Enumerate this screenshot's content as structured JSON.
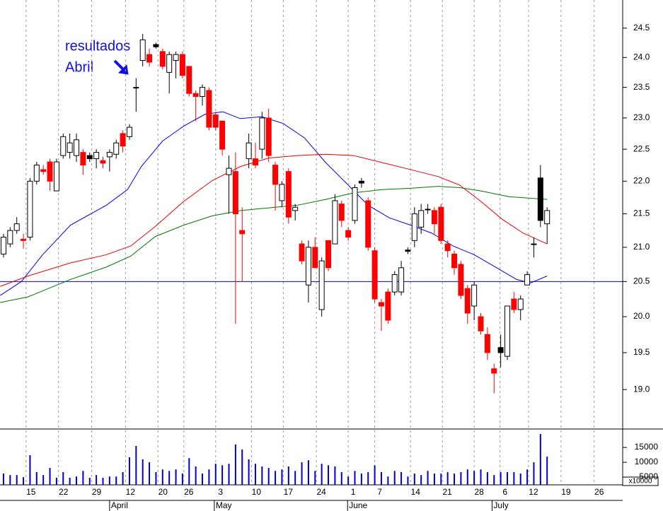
{
  "chart_data": {
    "type": "candlestick",
    "annotations": [
      "resultados",
      "Abril"
    ],
    "xlim": [
      -0.53,
      93.4
    ],
    "xticks": [
      {
        "value": 3.4,
        "label": "15"
      },
      {
        "value": 8.3,
        "label": "22"
      },
      {
        "value": 13.3,
        "label": "29"
      },
      {
        "value": 18.4,
        "label": "12"
      },
      {
        "value": 23.3,
        "label": "20"
      },
      {
        "value": 27.2,
        "label": "26"
      },
      {
        "value": 32.0,
        "label": "3"
      },
      {
        "value": 37.4,
        "label": "10"
      },
      {
        "value": 42.2,
        "label": "17"
      },
      {
        "value": 47.2,
        "label": "24"
      },
      {
        "value": 52.0,
        "label": "1"
      },
      {
        "value": 56.0,
        "label": "7"
      },
      {
        "value": 61.4,
        "label": "14"
      },
      {
        "value": 66.2,
        "label": "21"
      },
      {
        "value": 71.0,
        "label": "28"
      },
      {
        "value": 74.9,
        "label": "6"
      },
      {
        "value": 79.2,
        "label": "12"
      },
      {
        "value": 84.1,
        "label": "19"
      },
      {
        "value": 89.1,
        "label": "26"
      }
    ],
    "month_ticks": [
      {
        "value": 16.0,
        "label": "April"
      },
      {
        "value": 31.8,
        "label": "May"
      },
      {
        "value": 51.9,
        "label": "June"
      },
      {
        "value": 73.7,
        "label": "July"
      }
    ],
    "ylim": [
      18.48,
      24.99
    ],
    "log_scale": true,
    "yticks": [
      {
        "value": 19,
        "label": "19.0"
      },
      {
        "value": 19.5,
        "label": "19.5"
      },
      {
        "value": 20,
        "label": "20.0"
      },
      {
        "value": 20.5,
        "label": "20.5"
      },
      {
        "value": 21,
        "label": "21.0"
      },
      {
        "value": 21.5,
        "label": "21.5"
      },
      {
        "value": 22,
        "label": "22.0"
      },
      {
        "value": 22.5,
        "label": "22.5"
      },
      {
        "value": 23,
        "label": "23.0"
      },
      {
        "value": 23.5,
        "label": "23.5"
      },
      {
        "value": 24,
        "label": "24.0"
      },
      {
        "value": 24.5,
        "label": "24.5"
      }
    ],
    "grid_x": true,
    "up_color": "#ffffff",
    "down_color": "#ff0000",
    "down_above_prev_color": "#000000",
    "x": [
      0,
      1,
      2,
      3,
      4,
      5,
      6,
      7,
      8,
      9,
      10,
      11,
      12,
      13,
      14,
      15,
      16,
      17,
      18,
      19,
      20,
      21,
      22,
      23,
      24,
      25,
      26,
      27,
      28,
      29,
      30,
      31,
      32,
      33,
      34,
      35,
      36,
      37,
      38,
      39,
      40,
      41,
      42,
      43,
      44,
      45,
      46,
      47,
      48,
      49,
      50,
      51,
      52,
      53,
      54,
      55,
      56,
      57,
      58,
      59,
      60,
      61,
      62,
      63,
      64,
      65,
      66,
      67,
      68,
      69,
      70,
      71,
      72,
      73,
      74,
      75,
      76,
      77,
      78,
      79,
      80,
      81,
      82
    ],
    "open": [
      20.9,
      21.05,
      21.25,
      21.12,
      21.15,
      22.0,
      22.18,
      22.3,
      21.85,
      22.4,
      22.45,
      22.4,
      22.45,
      22.4,
      22.35,
      22.32,
      22.38,
      22.42,
      22.75,
      22.7,
      23.5,
      23.95,
      24.05,
      24.22,
      24.1,
      23.75,
      23.95,
      24.05,
      23.85,
      23.4,
      23.35,
      23.45,
      23.05,
      22.95,
      22.1,
      22.15,
      21.25,
      22.35,
      22.35,
      22.5,
      23.0,
      22.25,
      21.7,
      22.15,
      21.55,
      21.05,
      20.45,
      21.0,
      20.1,
      21.1,
      21.05,
      21.65,
      21.25,
      21.4,
      22.0,
      21.7,
      20.95,
      20.2,
      20.35,
      20.35,
      20.35,
      20.96,
      21.1,
      21.3,
      21.57,
      21.55,
      21.6,
      21.05,
      20.9,
      20.75,
      20.4,
      20.15,
      20.0,
      19.75,
      19.28,
      19.57,
      19.45,
      20.25,
      20.1,
      20.45,
      21.05,
      22.05,
      21.35
    ],
    "high": [
      21.2,
      21.3,
      21.45,
      21.2,
      22.05,
      22.3,
      22.25,
      22.35,
      22.35,
      22.75,
      22.75,
      22.75,
      22.5,
      22.45,
      22.5,
      22.38,
      22.5,
      22.65,
      22.8,
      22.9,
      23.65,
      24.4,
      24.15,
      24.25,
      24.15,
      24.1,
      24.1,
      24.1,
      23.85,
      23.45,
      23.55,
      23.5,
      23.1,
      22.95,
      22.4,
      22.45,
      21.6,
      22.75,
      22.6,
      23.1,
      23.15,
      22.3,
      22.0,
      22.2,
      21.65,
      21.1,
      21.1,
      21.15,
      20.85,
      21.1,
      21.8,
      21.7,
      21.3,
      21.95,
      22.05,
      21.75,
      21.0,
      20.25,
      20.4,
      20.65,
      20.8,
      21.0,
      21.6,
      21.65,
      21.65,
      21.6,
      21.65,
      21.1,
      20.95,
      20.8,
      20.45,
      20.5,
      20.05,
      19.85,
      19.35,
      19.75,
      20.15,
      20.35,
      20.3,
      20.65,
      21.15,
      22.25,
      21.6
    ],
    "low": [
      20.85,
      21.0,
      21.2,
      20.98,
      21.1,
      21.95,
      22.1,
      21.85,
      21.85,
      22.35,
      22.35,
      22.3,
      22.1,
      22.3,
      22.2,
      22.2,
      22.15,
      22.35,
      22.45,
      22.65,
      23.1,
      23.85,
      23.85,
      24.15,
      23.8,
      23.4,
      23.65,
      23.65,
      23.35,
      22.95,
      23.2,
      22.8,
      22.8,
      22.4,
      21.5,
      19.9,
      20.5,
      22.2,
      22.2,
      22.35,
      22.3,
      21.55,
      21.6,
      21.35,
      21.4,
      20.75,
      20.2,
      20.7,
      20.0,
      20.65,
      21.05,
      21.3,
      21.1,
      21.35,
      21.9,
      20.95,
      20.2,
      19.8,
      19.9,
      20.3,
      20.3,
      20.9,
      21.0,
      21.2,
      21.5,
      21.2,
      21.05,
      20.85,
      20.6,
      20.25,
      19.9,
      19.95,
      19.75,
      19.4,
      18.95,
      19.3,
      19.4,
      20.05,
      19.95,
      20.45,
      20.85,
      21.3,
      21.05
    ],
    "close": [
      21.15,
      21.25,
      21.35,
      21.1,
      22.0,
      22.25,
      22.15,
      22.0,
      22.3,
      22.7,
      22.6,
      22.65,
      22.25,
      22.35,
      22.45,
      22.28,
      22.45,
      22.6,
      22.55,
      22.85,
      23.5,
      24.3,
      23.92,
      24.18,
      23.85,
      24.05,
      24.05,
      23.7,
      23.4,
      23.35,
      23.5,
      22.85,
      22.85,
      22.5,
      22.2,
      21.5,
      21.2,
      22.6,
      22.25,
      23.0,
      22.4,
      21.95,
      21.95,
      21.45,
      21.6,
      20.8,
      21.0,
      20.7,
      20.8,
      20.7,
      21.7,
      21.4,
      21.15,
      21.9,
      21.97,
      21.0,
      20.25,
      20.15,
      19.95,
      20.6,
      20.7,
      20.94,
      21.5,
      21.55,
      21.56,
      21.35,
      21.1,
      20.95,
      20.7,
      20.3,
      20.05,
      20.45,
      19.8,
      19.5,
      19.22,
      19.5,
      20.15,
      20.1,
      20.25,
      20.6,
      21.05,
      21.4,
      21.55
    ],
    "lines": [
      {
        "color": "#0000ff",
        "x": [
          -0.5,
          2.7,
          5.9,
          10.1,
          15.5,
          18.7,
          20.8,
          24.0,
          27.2,
          30.4,
          33.1,
          35.7,
          39.0,
          42.2,
          45.4,
          48.6,
          51.8,
          55.0,
          58.2,
          61.4,
          64.6,
          67.8,
          71.0,
          74.2,
          77.4,
          79.5,
          82.0
        ],
        "values": [
          20.3,
          20.5,
          20.89,
          21.33,
          21.63,
          21.87,
          22.23,
          22.63,
          22.87,
          23.06,
          23.1,
          22.99,
          23.02,
          22.91,
          22.68,
          22.29,
          21.96,
          21.63,
          21.44,
          21.33,
          21.21,
          21.02,
          20.89,
          20.71,
          20.53,
          20.48,
          20.58
        ]
      },
      {
        "color": "#ee0000",
        "x": [
          -0.5,
          3.7,
          10.1,
          15.5,
          19.2,
          22.9,
          27.2,
          31.5,
          35.8,
          40.0,
          44.3,
          48.6,
          52.8,
          57.1,
          61.4,
          65.6,
          68.8,
          72.0,
          75.2,
          78.4,
          82.0
        ],
        "values": [
          20.43,
          20.58,
          20.77,
          20.89,
          21.02,
          21.31,
          21.69,
          22.01,
          22.23,
          22.36,
          22.4,
          22.42,
          22.4,
          22.29,
          22.18,
          22.07,
          21.94,
          21.69,
          21.42,
          21.21,
          21.05
        ]
      },
      {
        "color": "#007700",
        "x": [
          -0.5,
          3.7,
          10.1,
          15.5,
          19.2,
          22.9,
          27.2,
          31.5,
          35.8,
          40.0,
          44.3,
          48.6,
          52.8,
          57.1,
          61.4,
          65.6,
          68.8,
          72.0,
          76.3,
          82.0
        ],
        "values": [
          20.2,
          20.28,
          20.53,
          20.71,
          20.87,
          21.16,
          21.33,
          21.47,
          21.55,
          21.59,
          21.63,
          21.72,
          21.82,
          21.87,
          21.89,
          21.92,
          21.9,
          21.85,
          21.76,
          21.72
        ]
      }
    ],
    "reference_line": {
      "value": 20.5,
      "color": "#0000ff"
    },
    "volume": {
      "color": "#0000cc",
      "ylim": [
        2400,
        21200
      ],
      "yticks": [
        15000,
        10000,
        5000
      ],
      "unit_label": "x10000",
      "values": [
        6200,
        5700,
        5700,
        5000,
        12400,
        6700,
        5700,
        8100,
        4800,
        6700,
        4800,
        5200,
        7100,
        4800,
        5700,
        4800,
        5200,
        5200,
        6700,
        11700,
        15500,
        11000,
        10000,
        6700,
        7600,
        7100,
        7600,
        6200,
        11400,
        8600,
        6200,
        7600,
        9500,
        9000,
        9500,
        16000,
        14300,
        11000,
        9500,
        8600,
        8100,
        7100,
        7600,
        8600,
        7100,
        10000,
        10700,
        7100,
        9500,
        9000,
        8600,
        6700,
        5200,
        7100,
        6200,
        6700,
        9000,
        6700,
        5200,
        7100,
        6700,
        5200,
        6200,
        5700,
        7100,
        6200,
        6200,
        6700,
        6200,
        6700,
        7600,
        7100,
        7600,
        6700,
        5700,
        6700,
        6700,
        6700,
        6200,
        7600,
        10000,
        19500,
        11900
      ]
    }
  }
}
